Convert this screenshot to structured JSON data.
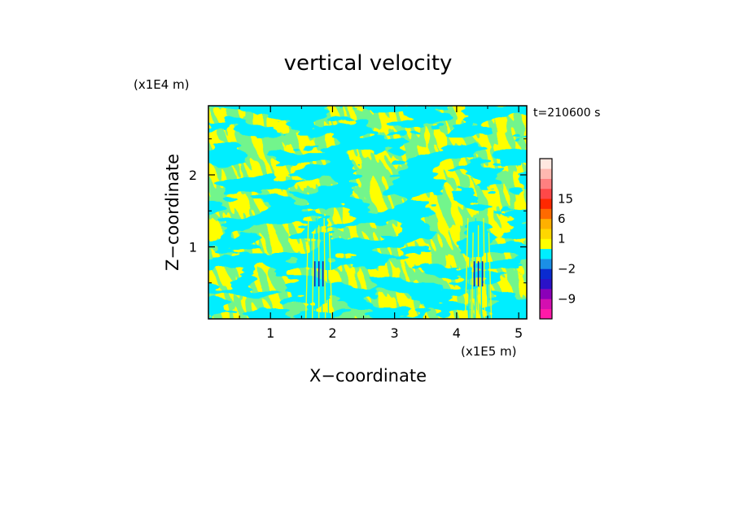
{
  "chart_data": {
    "type": "heatmap",
    "title": "vertical velocity",
    "xlabel": "X−coordinate",
    "ylabel": "Z−coordinate",
    "x_unit": "(x1E5 m)",
    "y_unit": "(x1E4 m)",
    "timestamp": "t=210600 s",
    "xlim": [
      0,
      5.13
    ],
    "ylim": [
      0,
      2.96
    ],
    "x_ticks": [
      1,
      2,
      3,
      4,
      5
    ],
    "y_ticks": [
      1,
      2
    ],
    "x_tick_labels": [
      "1",
      "2",
      "3",
      "4",
      "5"
    ],
    "y_tick_labels": [
      "1",
      "2"
    ],
    "grid": false,
    "field_colors": {
      "positive": "#ffff00",
      "negative": "#00eeff",
      "strong_negative": "#2020a0"
    },
    "dominant_classes": [
      {
        "range": "0 to 1",
        "color": "#ffff00"
      },
      {
        "range": "-1 to 0",
        "color": "#00eeff"
      }
    ],
    "colorbar": {
      "labels": [
        "15",
        "6",
        "1",
        "−2",
        "−9"
      ],
      "label_values": [
        15,
        6,
        1,
        -2,
        -9
      ],
      "levels": [
        {
          "color": "#ff1aa8"
        },
        {
          "color": "#d40fb0"
        },
        {
          "color": "#8b00b8"
        },
        {
          "color": "#2a12c8"
        },
        {
          "color": "#0a2bd0"
        },
        {
          "color": "#1b8fe6"
        },
        {
          "color": "#00eeff"
        },
        {
          "color": "#ffff00"
        },
        {
          "color": "#ffd700"
        },
        {
          "color": "#ffb000"
        },
        {
          "color": "#ff6a00"
        },
        {
          "color": "#ff2800"
        },
        {
          "color": "#ff4848"
        },
        {
          "color": "#ff8080"
        },
        {
          "color": "#ffb8b0"
        },
        {
          "color": "#ffe8e0"
        }
      ]
    }
  }
}
